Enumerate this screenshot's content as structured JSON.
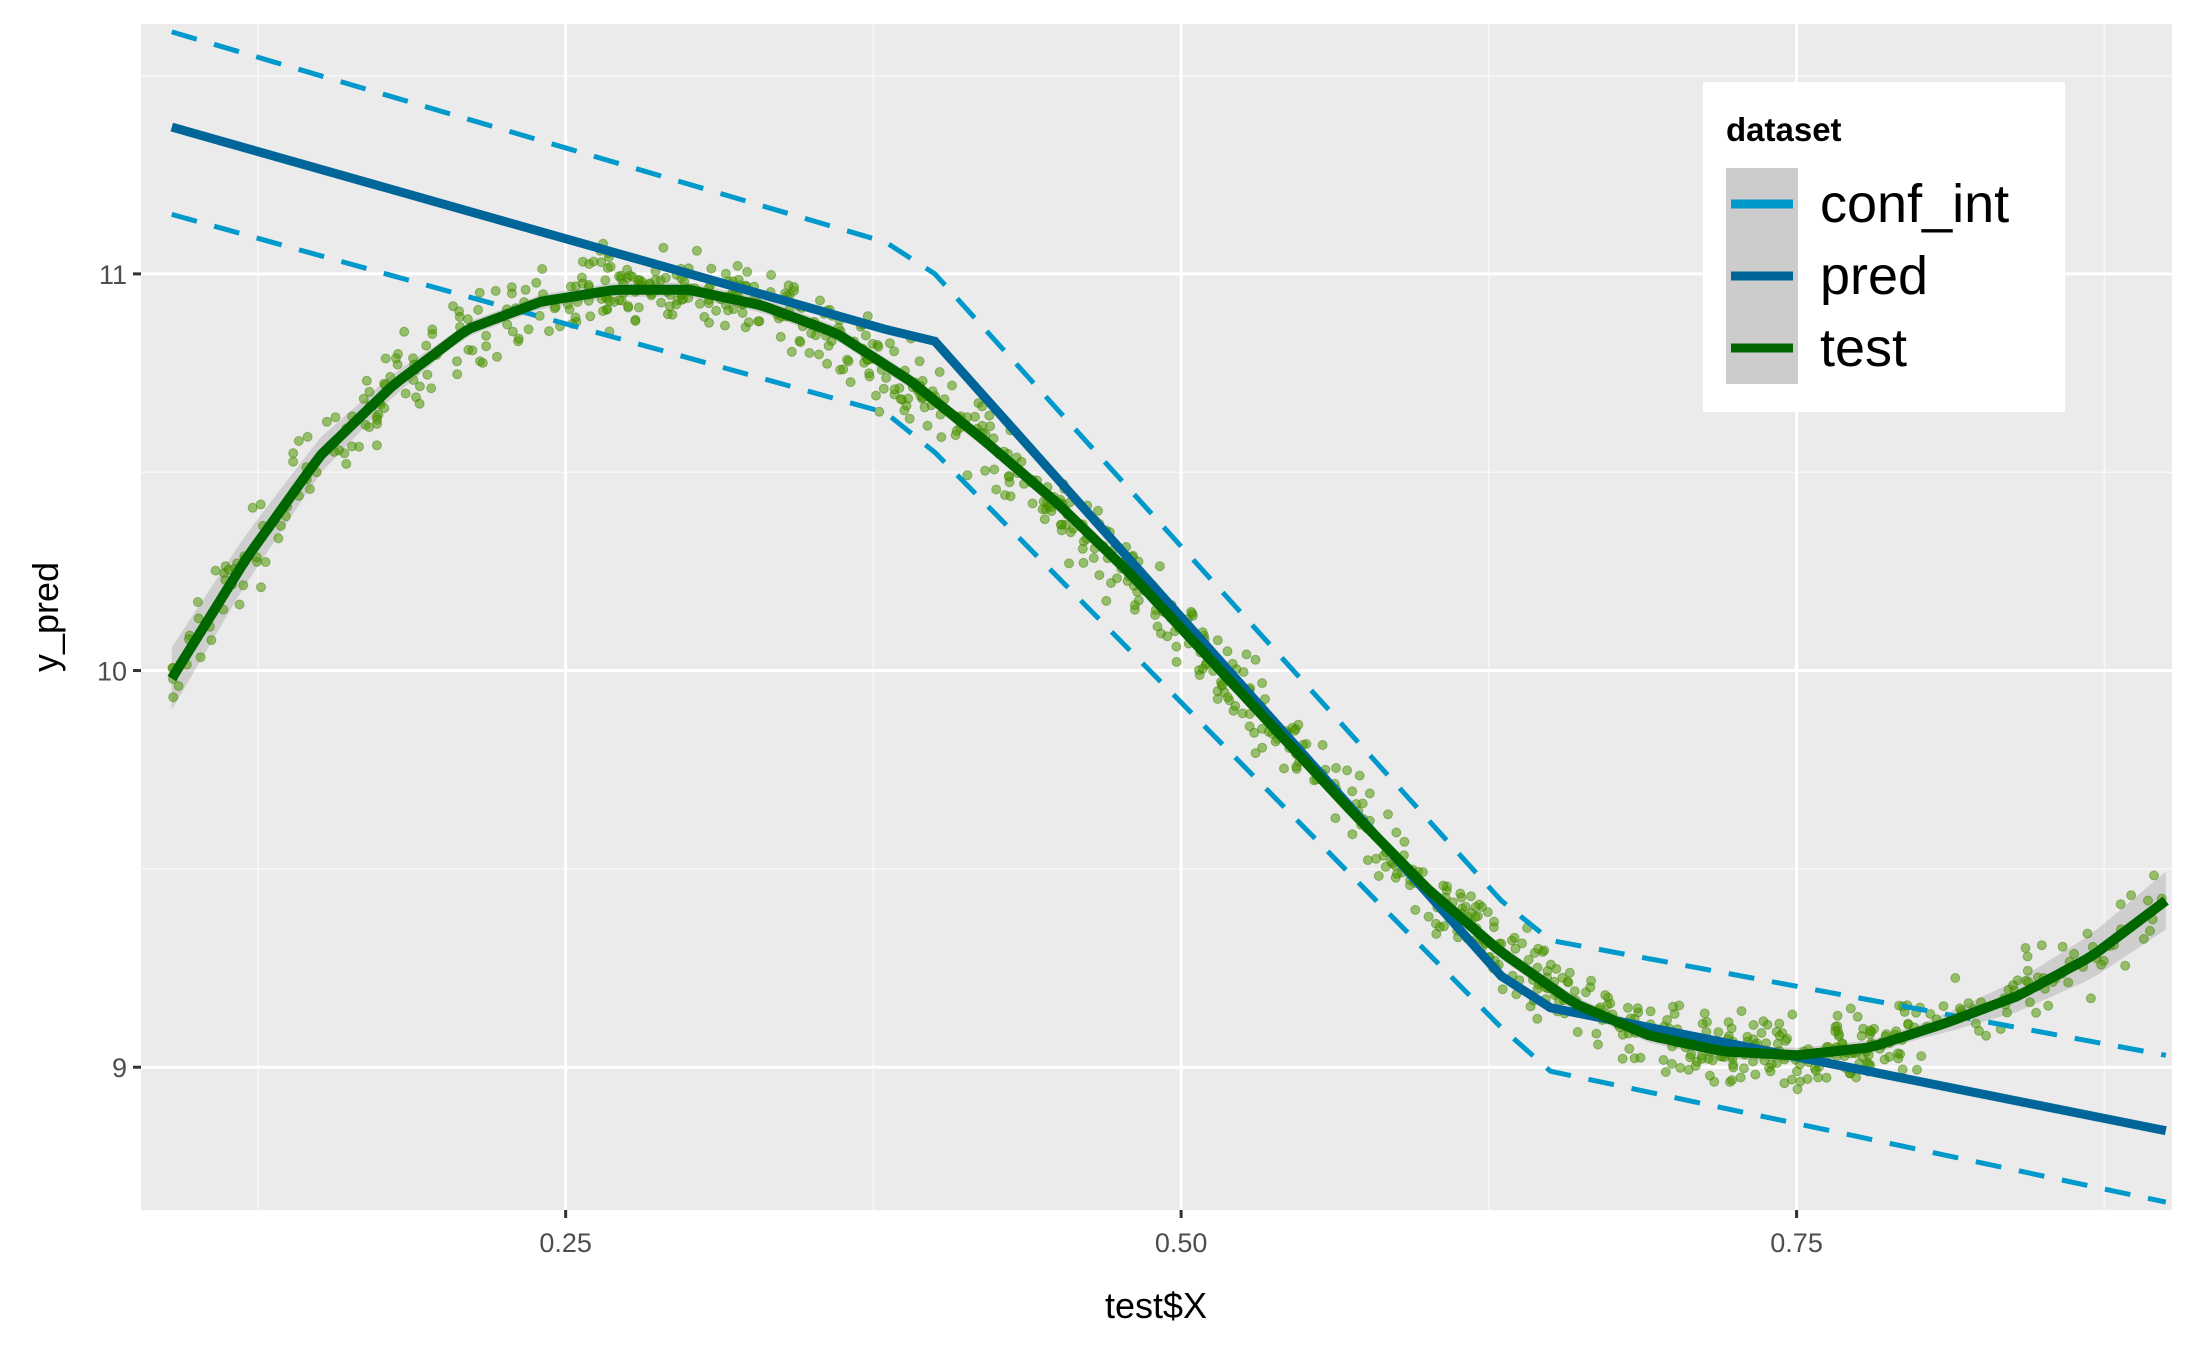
{
  "chart_data": {
    "type": "scatter",
    "title": "",
    "xlabel": "test$X",
    "ylabel": "y_pred",
    "xlim": [
      0.0775,
      0.9025
    ],
    "ylim": [
      8.64,
      11.63
    ],
    "x_ticks": [
      0.25,
      0.5,
      0.75
    ],
    "x_tick_labels": [
      "0.25",
      "0.50",
      "0.75"
    ],
    "y_ticks": [
      9,
      10,
      11
    ],
    "y_tick_labels": [
      "9",
      "10",
      "11"
    ],
    "grid": true,
    "legend": {
      "title": "dataset",
      "position": "top-right",
      "entries": [
        {
          "label": "conf_int",
          "color": "#0099cc",
          "style": "dashed"
        },
        {
          "label": "pred",
          "color": "#006699",
          "style": "solid"
        },
        {
          "label": "test",
          "color": "#006600",
          "style": "solid"
        }
      ]
    },
    "series": [
      {
        "name": "pred",
        "color": "#006699",
        "style": "solid",
        "x": [
          0.09,
          0.38,
          0.4,
          0.63,
          0.65,
          0.9
        ],
        "y": [
          11.37,
          10.86,
          10.83,
          9.23,
          9.15,
          8.84
        ]
      },
      {
        "name": "conf_int",
        "color": "#0099cc",
        "style": "dashed",
        "x": [
          0.09,
          0.38,
          0.4,
          0.63,
          0.65,
          0.9
        ],
        "y": [
          11.61,
          11.08,
          11.0,
          9.42,
          9.32,
          9.03
        ]
      },
      {
        "name": "conf_int",
        "color": "#0099cc",
        "style": "dashed",
        "x": [
          0.09,
          0.38,
          0.4,
          0.63,
          0.65,
          0.9
        ],
        "y": [
          11.15,
          10.65,
          10.55,
          9.1,
          8.99,
          8.66
        ]
      },
      {
        "name": "test",
        "color": "#006600",
        "style": "smooth",
        "x": [
          0.09,
          0.12,
          0.15,
          0.18,
          0.21,
          0.24,
          0.27,
          0.3,
          0.33,
          0.36,
          0.39,
          0.42,
          0.45,
          0.48,
          0.51,
          0.54,
          0.57,
          0.6,
          0.63,
          0.66,
          0.69,
          0.72,
          0.75,
          0.78,
          0.81,
          0.84,
          0.87,
          0.9
        ],
        "y": [
          9.98,
          10.28,
          10.54,
          10.72,
          10.86,
          10.93,
          10.96,
          10.96,
          10.92,
          10.85,
          10.73,
          10.58,
          10.42,
          10.24,
          10.04,
          9.84,
          9.64,
          9.45,
          9.29,
          9.16,
          9.08,
          9.04,
          9.03,
          9.05,
          9.11,
          9.18,
          9.28,
          9.42
        ]
      },
      {
        "name": "test",
        "color": "#4d9900",
        "style": "points",
        "n": 1000,
        "x_range": [
          0.09,
          0.9
        ]
      }
    ]
  }
}
